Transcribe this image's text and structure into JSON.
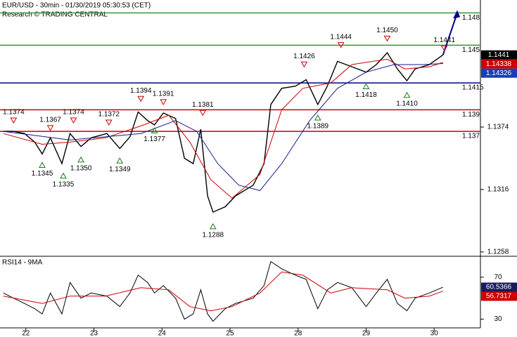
{
  "chart_data": {
    "type": "line",
    "title": "EUR/USD - 30min - 01/30/2019 05:30:53 (CET)",
    "subtitle": "Research © TRADING CENTRAL",
    "xlim": [
      -0.38,
      6.68
    ],
    "xticks": [
      {
        "value": 0,
        "label": "22"
      },
      {
        "value": 1,
        "label": "23"
      },
      {
        "value": 2,
        "label": "24"
      },
      {
        "value": 3,
        "label": "25"
      },
      {
        "value": 4,
        "label": "28"
      },
      {
        "value": 5,
        "label": "29"
      },
      {
        "value": 6,
        "label": "30"
      }
    ],
    "ylim": [
      1.1254,
      1.1492
    ],
    "yticks": [
      1.1374,
      1.1316,
      1.1258
    ],
    "series": [
      {
        "color": "#000000",
        "x": [
          -0.33,
          -0.18,
          -0.02,
          0.13,
          0.24,
          0.36,
          0.53,
          0.65,
          0.81,
          0.96,
          1.19,
          1.38,
          1.53,
          1.65,
          1.79,
          1.89,
          2.02,
          2.2,
          2.33,
          2.46,
          2.57,
          2.67,
          2.75,
          2.93,
          3.08,
          3.34,
          3.5,
          3.6,
          3.76,
          3.96,
          4.12,
          4.29,
          4.43,
          4.58,
          4.79,
          5.0,
          5.15,
          5.31,
          5.46,
          5.6,
          5.72,
          5.93,
          6.13
        ],
        "values": [
          1.137,
          1.137,
          1.1368,
          1.136,
          1.1349,
          1.1364,
          1.134,
          1.1368,
          1.1356,
          1.1364,
          1.1368,
          1.1354,
          1.1365,
          1.1388,
          1.138,
          1.1376,
          1.1387,
          1.1382,
          1.1345,
          1.134,
          1.1372,
          1.131,
          1.1295,
          1.13,
          1.131,
          1.132,
          1.134,
          1.1395,
          1.141,
          1.1412,
          1.1418,
          1.1395,
          1.1412,
          1.1435,
          1.143,
          1.1425,
          1.1432,
          1.1443,
          1.1428,
          1.1417,
          1.1428,
          1.1432,
          1.1441
        ]
      },
      {
        "color": "#cc0000",
        "x": [
          -0.33,
          0.24,
          0.65,
          1.17,
          1.69,
          2.1,
          2.41,
          2.72,
          3.03,
          3.44,
          3.76,
          4.07,
          4.48,
          4.79,
          5.31,
          5.57,
          5.93,
          6.13
        ],
        "values": [
          1.1368,
          1.1358,
          1.136,
          1.1364,
          1.1375,
          1.1385,
          1.136,
          1.1325,
          1.1308,
          1.133,
          1.139,
          1.141,
          1.1415,
          1.1432,
          1.1437,
          1.1428,
          1.143,
          1.1434
        ]
      },
      {
        "color": "#1a1a8c",
        "x": [
          -0.33,
          0.65,
          1.69,
          2.2,
          2.51,
          2.82,
          3.13,
          3.44,
          3.76,
          4.17,
          4.58,
          5.0,
          5.41,
          5.82,
          6.13
        ],
        "values": [
          1.137,
          1.1362,
          1.1368,
          1.138,
          1.137,
          1.134,
          1.132,
          1.1315,
          1.134,
          1.138,
          1.141,
          1.1425,
          1.1432,
          1.1432,
          1.1433
        ]
      }
    ],
    "projection": {
      "color": "#00008b",
      "x": [
        6.13,
        6.34
      ],
      "values": [
        1.1441,
        1.148
      ]
    },
    "levels": [
      {
        "value": 1.148,
        "label": "1.148",
        "color": "#2e9a2e"
      },
      {
        "value": 1.145,
        "label": "1.145",
        "color": "#2e9a2e"
      },
      {
        "value": 1.1415,
        "label": "1.1415",
        "color": "#00008b"
      },
      {
        "value": 1.139,
        "label": "1.139",
        "color": "#cc0000"
      },
      {
        "value": 1.137,
        "label": "1.137",
        "color": "#cc0000"
      }
    ],
    "annotations": [
      {
        "x": -0.18,
        "value": 1.1374,
        "marker": "peak"
      },
      {
        "x": 0.36,
        "value": 1.1367,
        "marker": "peak"
      },
      {
        "x": 0.7,
        "value": 1.1374,
        "marker": "peak"
      },
      {
        "x": 1.22,
        "value": 1.1372,
        "marker": "peak"
      },
      {
        "x": 1.69,
        "value": 1.1394,
        "marker": "peak"
      },
      {
        "x": 2.02,
        "value": 1.1391,
        "marker": "peak"
      },
      {
        "x": 2.6,
        "value": 1.1381,
        "marker": "peak"
      },
      {
        "x": 4.09,
        "value": 1.1426,
        "marker": "peak"
      },
      {
        "x": 4.63,
        "value": 1.1444,
        "marker": "peak"
      },
      {
        "x": 5.31,
        "value": 1.145,
        "marker": "peak",
        "label": "1.1450"
      },
      {
        "x": 6.15,
        "value": 1.1441,
        "marker": "peak"
      },
      {
        "x": 0.24,
        "value": 1.1345,
        "marker": "trough"
      },
      {
        "x": 0.55,
        "value": 1.1335,
        "marker": "trough"
      },
      {
        "x": 0.81,
        "value": 1.135,
        "marker": "trough",
        "label": "1.1350"
      },
      {
        "x": 1.38,
        "value": 1.1349,
        "marker": "trough"
      },
      {
        "x": 1.89,
        "value": 1.1377,
        "marker": "trough"
      },
      {
        "x": 2.75,
        "value": 1.1288,
        "marker": "trough"
      },
      {
        "x": 4.29,
        "value": 1.1389,
        "marker": "trough"
      },
      {
        "x": 5.0,
        "value": 1.1418,
        "marker": "trough"
      },
      {
        "x": 5.6,
        "value": 1.141,
        "marker": "trough",
        "label": "1.1410"
      }
    ],
    "price_tags": [
      {
        "value": 1.1441,
        "color": "#000000"
      },
      {
        "value": 1.14338,
        "color": "#cc0000"
      },
      {
        "value": 1.14326,
        "color": "#1a3cb4"
      }
    ],
    "rsi": {
      "title": "RSI14 - 9MA",
      "ylim": [
        21.7,
        90
      ],
      "yticks": [
        70,
        30
      ],
      "series": [
        {
          "color": "#000000",
          "x": [
            -0.33,
            -0.18,
            -0.02,
            0.13,
            0.24,
            0.36,
            0.53,
            0.65,
            0.81,
            0.96,
            1.19,
            1.38,
            1.53,
            1.65,
            1.79,
            1.89,
            2.02,
            2.2,
            2.33,
            2.46,
            2.57,
            2.67,
            2.75,
            2.93,
            3.08,
            3.34,
            3.5,
            3.6,
            3.76,
            3.96,
            4.12,
            4.29,
            4.43,
            4.58,
            4.79,
            5.0,
            5.15,
            5.31,
            5.46,
            5.6,
            5.72,
            5.93,
            6.13
          ],
          "values": [
            55,
            50,
            45,
            40,
            35,
            55,
            35,
            65,
            50,
            55,
            52,
            42,
            55,
            72,
            65,
            55,
            62,
            50,
            30,
            35,
            58,
            35,
            28,
            40,
            45,
            50,
            62,
            85,
            78,
            72,
            68,
            40,
            58,
            65,
            60,
            42,
            55,
            68,
            45,
            38,
            50,
            55,
            60.5
          ]
        },
        {
          "color": "#cc0000",
          "x": [
            -0.33,
            0.24,
            0.65,
            1.17,
            1.69,
            2.1,
            2.41,
            2.72,
            3.03,
            3.44,
            3.76,
            4.07,
            4.48,
            4.79,
            5.31,
            5.57,
            5.93,
            6.13
          ],
          "values": [
            52,
            45,
            52,
            52,
            60,
            58,
            42,
            38,
            42,
            55,
            75,
            72,
            55,
            60,
            58,
            50,
            52,
            56.7
          ]
        }
      ],
      "tags": [
        {
          "value": 60.5366,
          "color": "#1a1a5c"
        },
        {
          "value": 56.7317,
          "color": "#cc0000"
        }
      ]
    }
  }
}
